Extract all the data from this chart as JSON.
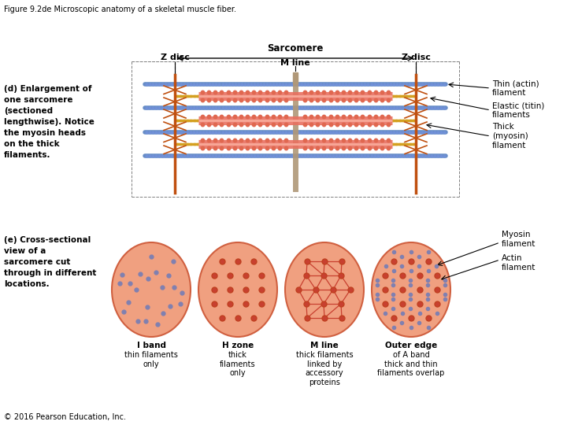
{
  "title": "Figure 9.2de Microscopic anatomy of a skeletal muscle fiber.",
  "copyright": "© 2016 Pearson Education, Inc.",
  "bg_color": "#ffffff",
  "sarcomere_label": "Sarcomere",
  "mline_label": "M line",
  "zdisc_label": "Z disc",
  "section_d_label": "(d) Enlargement of\none sarcomere\n(sectioned\nlengthwise). Notice\nthe myosin heads\non the thick\nfilaments.",
  "section_e_label": "(e) Cross-sectional\nview of a\nsarcomere cut\nthrough in different\nlocations.",
  "thin_actin_color": "#5580c0",
  "thick_myosin_color": "#e87060",
  "titin_color": "#d4a020",
  "zdisc_color": "#c05010",
  "mline_color": "#b09870",
  "ellipse_fill": "#f0a080",
  "ellipse_edge": "#d06040",
  "dot_large_color": "#c04020",
  "dot_small_color": "#8080b0",
  "labels_right": [
    "Thin (actin)\nfilament",
    "Elastic (titin)\nfilaments",
    "Thick\n(myosin)\nfilament"
  ],
  "circle_labels": [
    "I band\nthin filaments\nonly",
    "H zone\nthick\nfilaments\nonly",
    "M line\nthick filaments\nlinked by\naccessory\nproteins",
    "Outer edge\nof A band\nthick and thin\nfilaments overlap"
  ],
  "myosin_filament_label": "Myosin\nfilament",
  "actin_filament_label": "Actin\nfilament"
}
